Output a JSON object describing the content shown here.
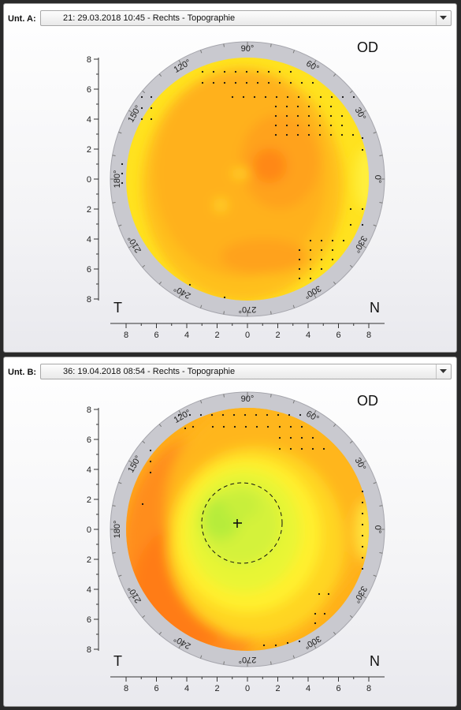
{
  "panels": [
    {
      "id": "a",
      "label": "Unt. A:",
      "exam": "21: 29.03.2018 10:45 - Rechts - Topographie",
      "eye": "OD",
      "corner_left": "T",
      "corner_right": "N",
      "angles": [
        "90°",
        "60°",
        "30°",
        "0°",
        "330°",
        "300°",
        "270°",
        "240°",
        "210°",
        "180°",
        "150°",
        "120°"
      ],
      "y_ticks": [
        "8",
        "6",
        "4",
        "2",
        "0",
        "2",
        "4",
        "6",
        "8"
      ],
      "x_ticks": [
        "8",
        "6",
        "4",
        "2",
        "0",
        "2",
        "4",
        "6",
        "8"
      ]
    },
    {
      "id": "b",
      "label": "Unt. B:",
      "exam": "36: 19.04.2018 08:54 - Rechts - Topographie",
      "eye": "OD",
      "corner_left": "T",
      "corner_right": "N",
      "angles": [
        "90°",
        "60°",
        "30°",
        "0°",
        "330°",
        "300°",
        "270°",
        "240°",
        "210°",
        "180°",
        "150°",
        "120°"
      ],
      "y_ticks": [
        "8",
        "6",
        "4",
        "2",
        "0",
        "2",
        "4",
        "6",
        "8"
      ],
      "x_ticks": [
        "8",
        "6",
        "4",
        "2",
        "0",
        "2",
        "4",
        "6",
        "8"
      ]
    }
  ],
  "colors": {
    "ring": "#c9c9cf",
    "yellow": "#ffe21f",
    "orange": "#ffa41a",
    "deep_orange": "#ff7a18",
    "light_green": "#d7f23a",
    "green": "#b5ec3a"
  },
  "icons": {
    "dropdown": "chevron-down-icon",
    "center": "plus-icon"
  }
}
